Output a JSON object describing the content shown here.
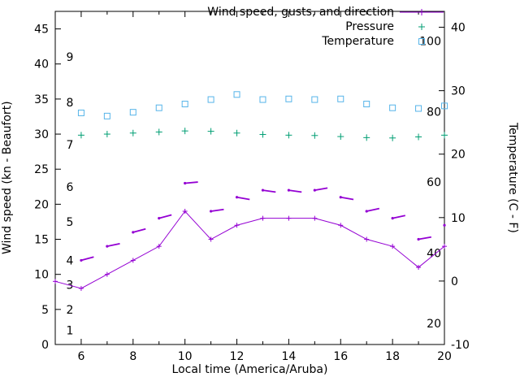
{
  "chart_data": {
    "type": "line",
    "title": "",
    "xlabel": "Local time (America/Aruba)",
    "ylabel_left": "Wind speed (kn - Beaufort)",
    "ylabel_right": "Temperature (C - F)",
    "xlim": [
      5,
      20
    ],
    "ylim_left": [
      0,
      47.5
    ],
    "ylim_right": [
      -10,
      42.5
    ],
    "grid": "off",
    "legend_position": "top-right-inside",
    "x_ticks_major": [
      6,
      8,
      10,
      12,
      14,
      16,
      18,
      20
    ],
    "x_ticks_minor": [
      7,
      9,
      11,
      13,
      15,
      17,
      19
    ],
    "y_ticks_left": [
      0,
      5,
      10,
      15,
      20,
      25,
      30,
      35,
      40,
      45
    ],
    "y_ticks_right": [
      -10,
      0,
      10,
      20,
      30,
      40
    ],
    "beaufort_labels": [
      {
        "label": "1",
        "kn": 2
      },
      {
        "label": "2",
        "kn": 5
      },
      {
        "label": "3",
        "kn": 8.5
      },
      {
        "label": "4",
        "kn": 12
      },
      {
        "label": "5",
        "kn": 17.5
      },
      {
        "label": "6",
        "kn": 22.5
      },
      {
        "label": "7",
        "kn": 28.5
      },
      {
        "label": "8",
        "kn": 34.5
      },
      {
        "label": "9",
        "kn": 41
      }
    ],
    "fahrenheit_labels": [
      {
        "label": "20",
        "c": -6.7
      },
      {
        "label": "40",
        "c": 4.4
      },
      {
        "label": "60",
        "c": 15.6
      },
      {
        "label": "80",
        "c": 26.7
      },
      {
        "label": "100",
        "c": 37.8
      }
    ],
    "legend": [
      {
        "label": "Wind speed, gusts, and direction",
        "marker": "line-plus",
        "color": "#9400d3"
      },
      {
        "label": "Pressure",
        "marker": "plus",
        "color": "#009e73"
      },
      {
        "label": "Temperature",
        "marker": "open-square",
        "color": "#56b4e9"
      }
    ],
    "series": [
      {
        "name": "Wind speed",
        "type": "line+points",
        "axis": "left",
        "color": "#9400d3",
        "x": [
          5,
          6,
          7,
          8,
          9,
          10,
          11,
          12,
          13,
          14,
          15,
          16,
          17,
          18,
          19,
          20
        ],
        "values": [
          9,
          8,
          10,
          12,
          14,
          19,
          15,
          17,
          18,
          18,
          18,
          17,
          15,
          14,
          11,
          14
        ]
      },
      {
        "name": "Wind gusts and direction",
        "type": "direction-ticks",
        "axis": "left",
        "color": "#9400d3",
        "x": [
          6,
          7,
          8,
          9,
          10,
          11,
          12,
          13,
          14,
          15,
          16,
          17,
          18,
          19,
          20
        ],
        "values": [
          12,
          14,
          16,
          18,
          23,
          19,
          21,
          22,
          22,
          22,
          21,
          19,
          18,
          15,
          17
        ],
        "direction_deg": [
          15,
          12,
          15,
          15,
          5,
          8,
          -10,
          -8,
          -8,
          10,
          -10,
          12,
          12,
          10,
          10
        ]
      },
      {
        "name": "Pressure",
        "type": "points-plus",
        "axis": "left",
        "color": "#009e73",
        "x": [
          6,
          7,
          8,
          9,
          10,
          11,
          12,
          13,
          14,
          15,
          16,
          17,
          18,
          19,
          20
        ],
        "values": [
          29.85,
          30.0,
          30.15,
          30.3,
          30.45,
          30.4,
          30.15,
          29.95,
          29.85,
          29.8,
          29.65,
          29.5,
          29.45,
          29.6,
          29.85
        ]
      },
      {
        "name": "Temperature",
        "type": "points-square",
        "axis": "right",
        "color": "#56b4e9",
        "x": [
          6,
          7,
          8,
          9,
          10,
          11,
          12,
          13,
          14,
          15,
          16,
          17,
          18,
          19,
          20
        ],
        "values": [
          26.5,
          26.0,
          26.6,
          27.3,
          27.9,
          28.6,
          29.4,
          28.6,
          28.7,
          28.6,
          28.7,
          27.9,
          27.3,
          27.2,
          27.6
        ]
      }
    ]
  }
}
